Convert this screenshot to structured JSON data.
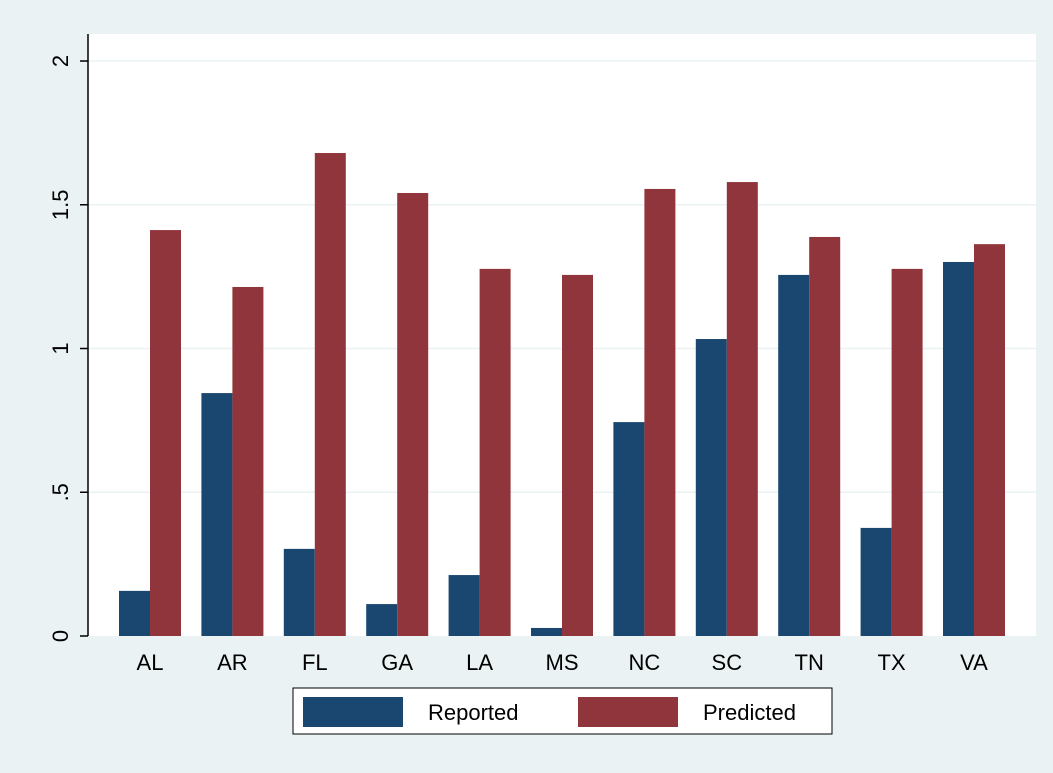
{
  "chart_data": {
    "type": "bar",
    "categories": [
      "AL",
      "AR",
      "FL",
      "GA",
      "LA",
      "MS",
      "NC",
      "SC",
      "TN",
      "TX",
      "VA"
    ],
    "series": [
      {
        "name": "Reported",
        "color": "#1a476f",
        "values": [
          0.157,
          0.845,
          0.303,
          0.111,
          0.212,
          0.028,
          0.744,
          1.033,
          1.256,
          0.376,
          1.301
        ]
      },
      {
        "name": "Predicted",
        "color": "#90353b",
        "values": [
          1.412,
          1.214,
          1.68,
          1.541,
          1.277,
          1.256,
          1.555,
          1.579,
          1.388,
          1.277,
          1.363
        ]
      }
    ],
    "ylim": [
      0,
      2.094
    ],
    "yticks": [
      0,
      {
        "value": 0.5,
        "label": ".5"
      },
      1,
      1.5,
      2
    ],
    "grid": true
  }
}
